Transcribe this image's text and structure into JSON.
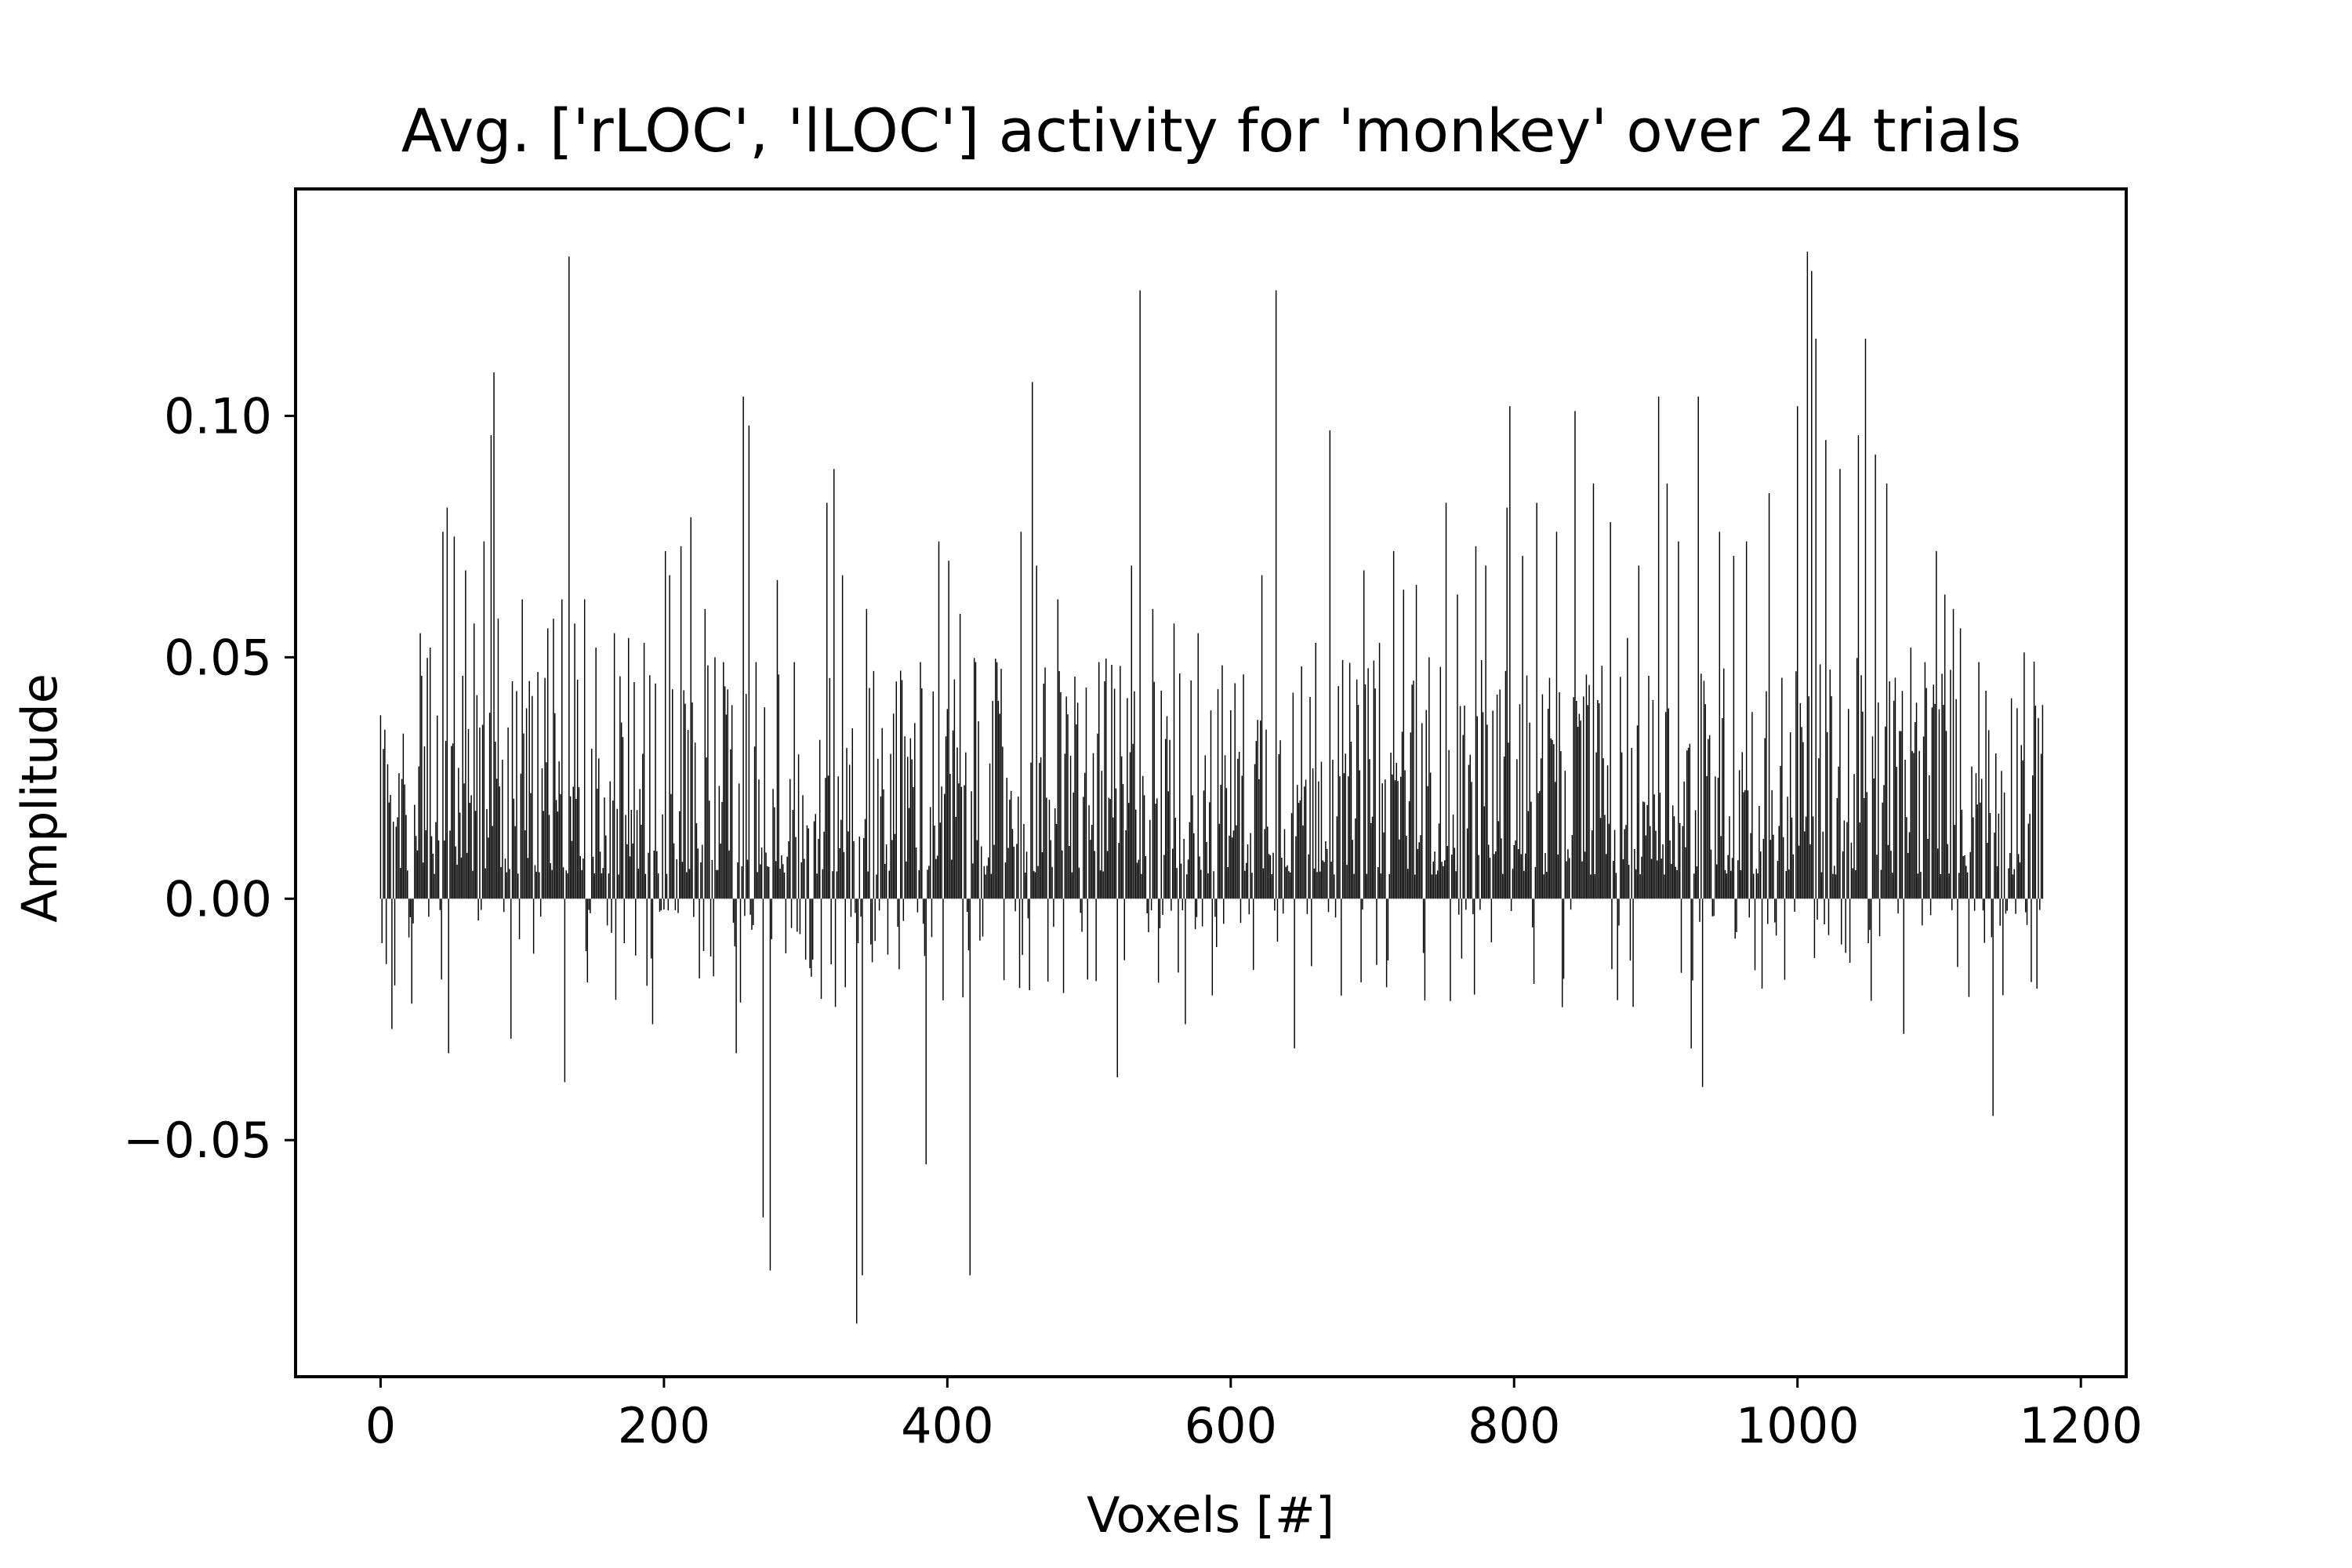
{
  "chart_data": {
    "type": "bar",
    "title": "Avg. ['rLOC', 'lLOC'] activity for 'monkey' over 24 trials",
    "xlabel": "Voxels [#]",
    "ylabel": "Amplitude",
    "xlim": [
      -60,
      1232
    ],
    "ylim": [
      -0.099,
      0.147
    ],
    "xticks": [
      0,
      200,
      400,
      600,
      800,
      1000,
      1200
    ],
    "xtick_labels": [
      "0",
      "200",
      "400",
      "600",
      "800",
      "1000",
      "1200"
    ],
    "yticks": [
      -0.05,
      0.0,
      0.05,
      0.1
    ],
    "ytick_labels": [
      "−0.05",
      "0.00",
      "0.05",
      "0.10"
    ],
    "grid": false,
    "bar_color": "#000000",
    "n_bars": 1174,
    "bars": [
      [
        0,
        0.038
      ],
      [
        3,
        0.035
      ],
      [
        8,
        -0.027
      ],
      [
        13,
        0.026
      ],
      [
        20,
        -0.008
      ],
      [
        25,
        0.013
      ],
      [
        28,
        0.055
      ],
      [
        35,
        0.052
      ],
      [
        44,
        0.076
      ],
      [
        47,
        0.081
      ],
      [
        48,
        -0.032
      ],
      [
        52,
        0.075
      ],
      [
        60,
        0.068
      ],
      [
        66,
        0.057
      ],
      [
        73,
        0.074
      ],
      [
        78,
        0.096
      ],
      [
        80,
        0.109
      ],
      [
        83,
        0.058
      ],
      [
        92,
        -0.029
      ],
      [
        96,
        0.043
      ],
      [
        100,
        0.062
      ],
      [
        107,
        0.042
      ],
      [
        118,
        0.056
      ],
      [
        122,
        0.058
      ],
      [
        128,
        0.062
      ],
      [
        130,
        -0.038
      ],
      [
        133,
        0.133
      ],
      [
        137,
        0.057
      ],
      [
        144,
        0.062
      ],
      [
        152,
        0.052
      ],
      [
        165,
        0.055
      ],
      [
        175,
        0.054
      ],
      [
        186,
        0.053
      ],
      [
        192,
        -0.026
      ],
      [
        201,
        0.072
      ],
      [
        204,
        0.067
      ],
      [
        212,
        0.073
      ],
      [
        219,
        0.079
      ],
      [
        229,
        0.06
      ],
      [
        236,
        0.05
      ],
      [
        242,
        0.049
      ],
      [
        251,
        -0.032
      ],
      [
        256,
        0.104
      ],
      [
        260,
        0.098
      ],
      [
        265,
        0.049
      ],
      [
        270,
        -0.066
      ],
      [
        275,
        -0.077
      ],
      [
        280,
        0.066
      ],
      [
        292,
        0.049
      ],
      [
        315,
        0.082
      ],
      [
        320,
        0.089
      ],
      [
        326,
        0.067
      ],
      [
        336,
        -0.088
      ],
      [
        340,
        -0.078
      ],
      [
        343,
        0.06
      ],
      [
        360,
        0.03
      ],
      [
        364,
        0.045
      ],
      [
        381,
        0.049
      ],
      [
        385,
        -0.055
      ],
      [
        394,
        0.074
      ],
      [
        401,
        0.07
      ],
      [
        409,
        0.059
      ],
      [
        416,
        -0.078
      ],
      [
        420,
        0.049
      ],
      [
        430,
        0.028
      ],
      [
        452,
        0.076
      ],
      [
        460,
        0.107
      ],
      [
        463,
        0.069
      ],
      [
        478,
        0.062
      ],
      [
        490,
        0.046
      ],
      [
        507,
        0.049
      ],
      [
        520,
        -0.037
      ],
      [
        530,
        0.069
      ],
      [
        536,
        0.126
      ],
      [
        545,
        0.06
      ],
      [
        560,
        0.057
      ],
      [
        568,
        -0.026
      ],
      [
        577,
        0.055
      ],
      [
        590,
        -0.01
      ],
      [
        605,
        0.029
      ],
      [
        622,
        0.067
      ],
      [
        632,
        0.126
      ],
      [
        645,
        -0.031
      ],
      [
        660,
        0.053
      ],
      [
        670,
        0.097
      ],
      [
        680,
        0.026
      ],
      [
        694,
        0.068
      ],
      [
        705,
        0.053
      ],
      [
        715,
        0.072
      ],
      [
        722,
        0.064
      ],
      [
        731,
        0.065
      ],
      [
        740,
        0.05
      ],
      [
        752,
        0.082
      ],
      [
        760,
        0.063
      ],
      [
        773,
        0.073
      ],
      [
        780,
        0.069
      ],
      [
        795,
        0.081
      ],
      [
        797,
        0.102
      ],
      [
        806,
        0.071
      ],
      [
        816,
        0.082
      ],
      [
        830,
        0.076
      ],
      [
        843,
        0.101
      ],
      [
        856,
        0.086
      ],
      [
        868,
        0.078
      ],
      [
        880,
        0.054
      ],
      [
        888,
        0.069
      ],
      [
        902,
        0.104
      ],
      [
        908,
        0.086
      ],
      [
        916,
        0.074
      ],
      [
        925,
        -0.031
      ],
      [
        930,
        0.104
      ],
      [
        933,
        -0.039
      ],
      [
        945,
        0.076
      ],
      [
        955,
        0.071
      ],
      [
        964,
        0.074
      ],
      [
        980,
        0.084
      ],
      [
        1000,
        0.102
      ],
      [
        1007,
        0.134
      ],
      [
        1010,
        0.13
      ],
      [
        1013,
        0.116
      ],
      [
        1020,
        0.095
      ],
      [
        1030,
        0.089
      ],
      [
        1043,
        0.096
      ],
      [
        1048,
        0.116
      ],
      [
        1055,
        0.092
      ],
      [
        1063,
        0.086
      ],
      [
        1075,
        -0.028
      ],
      [
        1080,
        0.052
      ],
      [
        1090,
        0.049
      ],
      [
        1098,
        0.072
      ],
      [
        1104,
        0.063
      ],
      [
        1110,
        0.06
      ],
      [
        1115,
        0.056
      ],
      [
        1128,
        0.049
      ],
      [
        1138,
        -0.045
      ],
      [
        1145,
        -0.02
      ],
      [
        1160,
        0.051
      ],
      [
        1168,
        0.04
      ],
      [
        1172,
        0.03
      ]
    ]
  }
}
